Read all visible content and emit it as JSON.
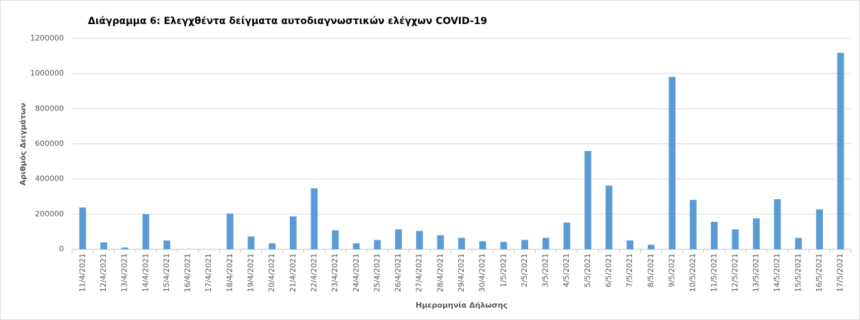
{
  "chart_data": {
    "type": "bar",
    "title": "Διάγραμμα 6: Ελεγχθέντα δείγματα αυτοδιαγνωστικών ελέγχων COVID-19",
    "x_label": "Ημερομηνία Δήλωσης",
    "y_label": "Αριθμός Δειγμάτων",
    "categories": [
      "11/4/2021",
      "12/4/2021",
      "13/4/2021",
      "14/4/2021",
      "15/4/2021",
      "16/4/2021",
      "17/4/2021",
      "18/4/2021",
      "19/4/2021",
      "20/4/2021",
      "21/4/2021",
      "22/4/2021",
      "23/4/2021",
      "24/4/2021",
      "25/4/2021",
      "26/4/2021",
      "27/4/2021",
      "28/4/2021",
      "29/4/2021",
      "30/4/2021",
      "1/5/2021",
      "2/5/2021",
      "3/5/2021",
      "4/5/2021",
      "5/5/2021",
      "6/5/2021",
      "7/5/2021",
      "8/5/2021",
      "9/5/2021",
      "10/5/2021",
      "11/5/2021",
      "12/5/2021",
      "13/5/2021",
      "14/5/2021",
      "15/5/2021",
      "16/5/2021",
      "17/5/2021"
    ],
    "values": [
      238000,
      39000,
      10000,
      200000,
      50000,
      0,
      0,
      203000,
      73000,
      34000,
      187000,
      347000,
      108000,
      34000,
      53000,
      113000,
      104000,
      80000,
      65000,
      46000,
      42000,
      53000,
      65000,
      152000,
      559000,
      362000,
      50000,
      26000,
      981000,
      281000,
      156000,
      113000,
      176000,
      285000,
      65000,
      227000,
      1118000
    ],
    "color": "#5b9bd5",
    "ylim": [
      0,
      1200000
    ],
    "yticks": [
      0,
      200000,
      400000,
      600000,
      800000,
      1000000,
      1200000
    ],
    "grid": true
  }
}
